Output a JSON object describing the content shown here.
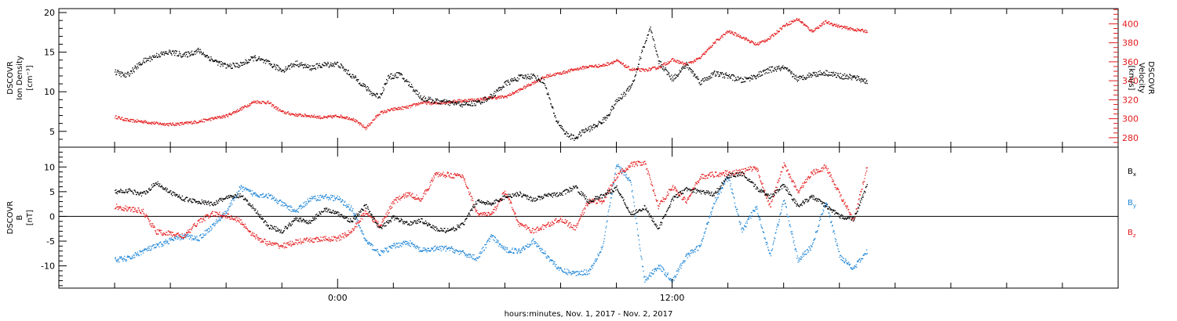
{
  "chart_data": [
    {
      "type": "scatter",
      "panel": "top",
      "ylabel_left": [
        "DSCOVR",
        "Ion Density",
        "[cm⁻³]"
      ],
      "ylabel_right": [
        "DSCOVR",
        "Velocity",
        "[km/s]"
      ],
      "left_ylim": [
        3,
        20.5
      ],
      "left_yticks": [
        5,
        10,
        15,
        20
      ],
      "right_ylim": [
        270,
        416
      ],
      "right_yticks": [
        280,
        300,
        320,
        340,
        360,
        380,
        400
      ],
      "right_color": "#e41a1c",
      "series": [
        {
          "axis": "left",
          "color": "#000000",
          "t": [
            -8.0,
            -7.6,
            -7.0,
            -6.5,
            -6.0,
            -5.5,
            -5.0,
            -4.5,
            -4.0,
            -3.5,
            -3.0,
            -2.5,
            -2.0,
            -1.5,
            -1.0,
            -0.5,
            0.0,
            0.5,
            0.8,
            1.2,
            1.5,
            1.8,
            2.2,
            2.6,
            3.0,
            3.5,
            4.0,
            4.5,
            5.0,
            5.5,
            6.0,
            6.5,
            7.0,
            7.4,
            7.8,
            8.2,
            8.5,
            8.8,
            9.2,
            9.6,
            10.0,
            10.3,
            10.6,
            10.9,
            11.2,
            11.5,
            12.0,
            12.5,
            13.0,
            13.5,
            14.0,
            14.5,
            15.0,
            15.5,
            16.0,
            16.5,
            17.0,
            17.5,
            18.0,
            18.5,
            19.0
          ],
          "y": [
            12.5,
            12.0,
            13.8,
            14.6,
            15.0,
            14.6,
            15.2,
            14.0,
            13.2,
            13.4,
            14.3,
            13.6,
            12.7,
            13.6,
            13.0,
            13.4,
            13.5,
            12.0,
            11.2,
            9.8,
            9.4,
            11.8,
            12.2,
            10.8,
            9.2,
            8.8,
            8.6,
            8.4,
            8.6,
            9.4,
            11.0,
            11.8,
            12.0,
            11.2,
            6.6,
            4.6,
            4.1,
            5.0,
            5.6,
            6.6,
            8.8,
            9.8,
            11.3,
            15.0,
            18.0,
            13.8,
            11.6,
            13.4,
            11.2,
            12.3,
            12.0,
            11.4,
            12.0,
            12.8,
            13.0,
            11.6,
            12.2,
            12.4,
            12.0,
            11.8,
            11.3
          ]
        },
        {
          "axis": "right",
          "color": "#e41a1c",
          "t": [
            -8.0,
            -7.5,
            -7.0,
            -6.5,
            -6.0,
            -5.5,
            -5.0,
            -4.5,
            -4.0,
            -3.5,
            -3.0,
            -2.5,
            -2.0,
            -1.5,
            -1.0,
            -0.5,
            0.0,
            0.5,
            1.0,
            1.5,
            2.0,
            2.5,
            3.0,
            3.5,
            4.0,
            4.5,
            5.0,
            5.5,
            6.0,
            6.5,
            7.0,
            7.5,
            8.0,
            8.5,
            9.0,
            9.5,
            10.0,
            10.5,
            11.0,
            11.5,
            12.0,
            12.5,
            13.0,
            13.5,
            14.0,
            14.5,
            15.0,
            15.5,
            16.0,
            16.5,
            17.0,
            17.5,
            18.0,
            18.5,
            19.0
          ],
          "y": [
            302,
            298,
            297,
            295,
            294,
            295,
            297,
            300,
            303,
            310,
            318,
            317,
            307,
            304,
            303,
            301,
            303,
            300,
            290,
            306,
            310,
            312,
            317,
            316,
            318,
            319,
            320,
            322,
            323,
            330,
            338,
            345,
            348,
            352,
            355,
            356,
            361,
            352,
            351,
            354,
            362,
            357,
            364,
            380,
            392,
            386,
            378,
            385,
            398,
            405,
            392,
            402,
            397,
            394,
            392
          ]
        }
      ]
    },
    {
      "type": "scatter",
      "panel": "bottom",
      "ylabel_left": [
        "DSCOVR",
        "B",
        "[nT]"
      ],
      "ylim": [
        -14.5,
        14
      ],
      "yticks": [
        -10,
        -5,
        0,
        5,
        10
      ],
      "zero_line": true,
      "series": [
        {
          "name": "B",
          "sub": "x",
          "color": "#000000",
          "t": [
            -8.0,
            -7.5,
            -7.0,
            -6.5,
            -6.0,
            -5.5,
            -5.0,
            -4.5,
            -4.0,
            -3.5,
            -3.0,
            -2.5,
            -2.0,
            -1.5,
            -1.0,
            -0.5,
            0.0,
            0.5,
            1.0,
            1.5,
            2.0,
            2.5,
            3.0,
            3.5,
            4.0,
            4.5,
            5.0,
            5.5,
            6.0,
            6.5,
            7.0,
            7.5,
            8.0,
            8.5,
            9.0,
            9.5,
            10.0,
            10.5,
            11.0,
            11.5,
            12.0,
            12.5,
            13.0,
            13.5,
            14.0,
            14.5,
            15.0,
            15.5,
            16.0,
            16.5,
            17.0,
            17.5,
            18.0,
            18.5,
            19.0
          ],
          "y": [
            5.0,
            5.2,
            4.5,
            6.8,
            4.8,
            3.5,
            3.0,
            2.5,
            3.8,
            4.2,
            1.5,
            -2.0,
            -3.0,
            -0.5,
            -1.2,
            1.5,
            0.5,
            -1.0,
            2.2,
            -2.5,
            -0.2,
            -1.5,
            -0.8,
            -2.5,
            -3.0,
            -1.5,
            3.2,
            2.5,
            4.0,
            4.6,
            3.4,
            4.2,
            4.5,
            6.0,
            3.0,
            4.2,
            5.8,
            0.5,
            1.8,
            -2.5,
            3.5,
            5.5,
            5.0,
            4.5,
            8.2,
            8.6,
            5.8,
            4.0,
            6.4,
            2.0,
            4.0,
            2.2,
            0.0,
            -0.5,
            6.5
          ]
        },
        {
          "name": "B",
          "sub": "y",
          "color": "#1c84d6",
          "t": [
            -8.0,
            -7.5,
            -7.0,
            -6.5,
            -6.0,
            -5.5,
            -5.0,
            -4.5,
            -4.0,
            -3.5,
            -3.0,
            -2.5,
            -2.0,
            -1.5,
            -1.0,
            -0.5,
            0.0,
            0.5,
            1.0,
            1.5,
            2.0,
            2.5,
            3.0,
            3.5,
            4.0,
            4.5,
            5.0,
            5.5,
            6.0,
            6.5,
            7.0,
            7.5,
            8.0,
            8.5,
            9.0,
            9.5,
            10.0,
            10.5,
            11.0,
            11.5,
            12.0,
            12.5,
            13.0,
            13.5,
            14.0,
            14.5,
            15.0,
            15.5,
            16.0,
            16.5,
            17.0,
            17.5,
            18.0,
            18.5,
            19.0
          ],
          "y": [
            -8.8,
            -8.5,
            -7.0,
            -6.0,
            -4.8,
            -4.0,
            -4.5,
            -2.0,
            1.0,
            5.8,
            4.5,
            4.2,
            2.5,
            1.0,
            3.5,
            4.0,
            3.6,
            1.5,
            -5.0,
            -7.5,
            -6.0,
            -5.2,
            -7.0,
            -6.5,
            -6.5,
            -7.5,
            -8.5,
            -4.0,
            -6.8,
            -7.0,
            -5.0,
            -8.0,
            -11.0,
            -11.5,
            -11.2,
            -6.0,
            10.5,
            7.0,
            -13.0,
            -10.0,
            -13.0,
            -8.0,
            -6.0,
            3.0,
            8.0,
            -3.0,
            2.0,
            -8.0,
            3.5,
            -9.0,
            -6.0,
            3.0,
            -8.0,
            -10.5,
            -7.0
          ]
        },
        {
          "name": "B",
          "sub": "z",
          "color": "#e41a1c",
          "t": [
            -8.0,
            -7.5,
            -7.0,
            -6.5,
            -6.0,
            -5.5,
            -5.0,
            -4.5,
            -4.0,
            -3.5,
            -3.0,
            -2.5,
            -2.0,
            -1.5,
            -1.0,
            -0.5,
            0.0,
            0.5,
            1.0,
            1.5,
            2.0,
            2.5,
            3.0,
            3.5,
            4.0,
            4.5,
            5.0,
            5.5,
            6.0,
            6.5,
            7.0,
            7.5,
            8.0,
            8.5,
            9.0,
            9.5,
            10.0,
            10.5,
            11.0,
            11.5,
            12.0,
            12.5,
            13.0,
            13.5,
            14.0,
            14.5,
            15.0,
            15.5,
            16.0,
            16.5,
            17.0,
            17.5,
            18.0,
            18.5,
            19.0
          ],
          "y": [
            2.0,
            1.5,
            1.0,
            -3.2,
            -3.5,
            -4.0,
            -1.0,
            0.5,
            0.2,
            -1.0,
            -4.0,
            -5.5,
            -6.0,
            -5.2,
            -4.8,
            -4.6,
            -4.5,
            -3.0,
            1.0,
            -2.0,
            3.0,
            4.5,
            3.5,
            8.5,
            8.4,
            8.0,
            0.5,
            0.3,
            5.0,
            -1.5,
            -3.0,
            -1.8,
            -0.5,
            -2.5,
            3.2,
            3.0,
            8.2,
            10.5,
            10.8,
            2.0,
            6.0,
            3.0,
            8.0,
            8.5,
            8.8,
            9.0,
            10.0,
            2.0,
            10.5,
            5.0,
            8.8,
            10.0,
            4.5,
            -1.0,
            10.5
          ]
        }
      ]
    }
  ],
  "x_axis": {
    "range_hours": [
      -10,
      28
    ],
    "major_ticks": [
      {
        "t": 0,
        "label": "0:00"
      },
      {
        "t": 12,
        "label": "12:00"
      }
    ],
    "minor_tick_step_hours": 2,
    "xlabel": "hours:minutes, Nov.  1, 2017 - Nov.  2, 2017"
  }
}
